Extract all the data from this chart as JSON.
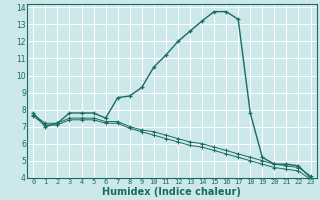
{
  "title": "",
  "xlabel": "Humidex (Indice chaleur)",
  "ylabel": "",
  "bg_color": "#cde8ea",
  "grid_color": "#ffffff",
  "line_color": "#1a6b60",
  "xlim": [
    -0.5,
    23.5
  ],
  "ylim": [
    4,
    14.2
  ],
  "xticks": [
    0,
    1,
    2,
    3,
    4,
    5,
    6,
    7,
    8,
    9,
    10,
    11,
    12,
    13,
    14,
    15,
    16,
    17,
    18,
    19,
    20,
    21,
    22,
    23
  ],
  "yticks": [
    4,
    5,
    6,
    7,
    8,
    9,
    10,
    11,
    12,
    13,
    14
  ],
  "curve1_x": [
    0,
    1,
    2,
    3,
    4,
    5,
    6,
    7,
    8,
    9,
    10,
    11,
    12,
    13,
    14,
    15,
    16,
    17,
    18,
    19,
    20,
    21,
    22,
    23
  ],
  "curve1_y": [
    7.8,
    7.0,
    7.2,
    7.8,
    7.8,
    7.8,
    7.5,
    8.7,
    8.8,
    9.3,
    10.5,
    11.2,
    12.0,
    12.6,
    13.2,
    13.75,
    13.75,
    13.3,
    7.8,
    5.2,
    4.8,
    4.8,
    4.7,
    4.0
  ],
  "curve2_x": [
    0,
    1,
    2,
    3,
    4,
    5,
    6,
    7,
    8,
    9,
    10,
    11,
    12,
    13,
    14,
    15,
    16,
    17,
    18,
    19,
    20,
    21,
    22,
    23
  ],
  "curve2_y": [
    7.7,
    7.2,
    7.2,
    7.5,
    7.5,
    7.5,
    7.3,
    7.3,
    7.0,
    6.8,
    6.7,
    6.5,
    6.3,
    6.1,
    6.0,
    5.8,
    5.6,
    5.4,
    5.2,
    5.0,
    4.8,
    4.7,
    4.6,
    4.1
  ],
  "curve3_x": [
    0,
    1,
    2,
    3,
    4,
    5,
    6,
    7,
    8,
    9,
    10,
    11,
    12,
    13,
    14,
    15,
    16,
    17,
    18,
    19,
    20,
    21,
    22,
    23
  ],
  "curve3_y": [
    7.6,
    7.1,
    7.1,
    7.4,
    7.4,
    7.4,
    7.2,
    7.2,
    6.9,
    6.7,
    6.5,
    6.3,
    6.1,
    5.9,
    5.8,
    5.6,
    5.4,
    5.2,
    5.0,
    4.8,
    4.6,
    4.5,
    4.4,
    3.9
  ],
  "xlabel_fontsize": 7,
  "tick_fontsize": 5,
  "linewidth1": 1.0,
  "linewidth2": 0.7,
  "markersize1": 3.5,
  "markersize2": 2.5
}
